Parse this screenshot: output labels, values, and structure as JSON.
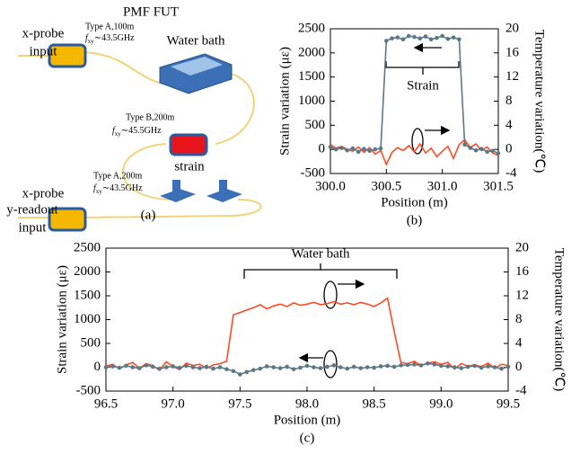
{
  "diagram": {
    "title": "PMF FUT",
    "probe_top": [
      "x-probe",
      "input"
    ],
    "coil_1": {
      "type": "Type A,100m",
      "freq": [
        "f",
        "xy",
        "∼43.5GHz"
      ]
    },
    "water_bath": "Water bath",
    "coil_2": {
      "type": "Type B,200m",
      "freq": [
        "f",
        "xy",
        "∼45.5GHz"
      ]
    },
    "strain": "strain",
    "coil_3": {
      "type": "Type A,200m",
      "freq": [
        "f",
        "xy",
        "∼43.5GHz"
      ]
    },
    "probe_bottom": [
      "x-probe",
      "y-readout",
      "input"
    ],
    "caption": "(a)"
  },
  "chart_data": [
    {
      "type": "line",
      "caption": "(b)",
      "xlabel": "Position (m)",
      "ylabel": "Strain variation (με)",
      "y2label": "Temperature variation(℃)",
      "annotation": "Strain",
      "x": [
        300.0,
        300.05,
        300.1,
        300.15,
        300.2,
        300.25,
        300.3,
        300.35,
        300.4,
        300.45,
        300.5,
        300.55,
        300.6,
        300.65,
        300.7,
        300.75,
        300.8,
        300.85,
        300.9,
        300.95,
        301.0,
        301.05,
        301.1,
        301.15,
        301.2,
        301.25,
        301.3,
        301.35,
        301.4,
        301.45,
        301.5
      ],
      "series": [
        {
          "color": "#5b7886",
          "markers": true,
          "values": [
            50,
            0,
            30,
            -20,
            20,
            -50,
            10,
            -30,
            0,
            20,
            2250,
            2300,
            2320,
            2280,
            2350,
            2330,
            2300,
            2340,
            2280,
            2310,
            2350,
            2290,
            2320,
            2280,
            100,
            30,
            -20,
            10,
            -50,
            -30,
            -80
          ]
        },
        {
          "color": "#ff4a26",
          "axis": "y2",
          "values": [
            0.8,
            0.2,
            0.5,
            0.0,
            -0.3,
            0.4,
            -0.5,
            0.3,
            -0.8,
            -0.2,
            -2.5,
            -0.5,
            0.3,
            -0.2,
            0.6,
            -0.4,
            0.9,
            -0.6,
            0.2,
            -1.2,
            -0.3,
            0.5,
            -1.5,
            0.8,
            1.6,
            0.3,
            0.9,
            -0.2,
            0.4,
            -0.6,
            -1.0
          ]
        }
      ],
      "xlim": [
        300.0,
        301.5
      ],
      "xticks": [
        {
          "value": 300.0,
          "label": "300.0"
        },
        300.5,
        {
          "value": 301.0,
          "label": "301.0"
        },
        301.5
      ],
      "ylim": [
        -500,
        2500
      ],
      "yticks": [
        2500,
        2000,
        1500,
        1000,
        500,
        0,
        -500
      ],
      "y2lim": [
        -4,
        20
      ],
      "y2ticks": [
        20,
        16,
        12,
        8,
        4,
        0,
        -4
      ]
    },
    {
      "type": "line",
      "caption": "(c)",
      "xlabel": "Position (m)",
      "ylabel": "Strain variation (με)",
      "y2label": "Temperature variation(℃)",
      "annotation": "Water bath",
      "x": [
        96.5,
        96.55,
        96.6,
        96.65,
        96.7,
        96.75,
        96.8,
        96.85,
        96.9,
        96.95,
        97.0,
        97.05,
        97.1,
        97.15,
        97.2,
        97.25,
        97.3,
        97.35,
        97.4,
        97.45,
        97.5,
        97.55,
        97.6,
        97.65,
        97.7,
        97.75,
        97.8,
        97.85,
        97.9,
        97.95,
        98.0,
        98.05,
        98.1,
        98.15,
        98.2,
        98.25,
        98.3,
        98.35,
        98.4,
        98.45,
        98.5,
        98.55,
        98.6,
        98.65,
        98.7,
        98.75,
        98.8,
        98.85,
        98.9,
        98.95,
        99.0,
        99.05,
        99.1,
        99.15,
        99.2,
        99.25,
        99.3,
        99.35,
        99.4,
        99.45,
        99.5
      ],
      "series": [
        {
          "color": "#5b7886",
          "markers": true,
          "values": [
            0,
            20,
            -10,
            30,
            0,
            -20,
            40,
            10,
            -30,
            0,
            20,
            -10,
            30,
            0,
            -20,
            10,
            -30,
            0,
            -40,
            -80,
            -150,
            -100,
            -60,
            -30,
            20,
            0,
            -20,
            10,
            -40,
            -10,
            30,
            0,
            -20,
            10,
            40,
            0,
            -30,
            10,
            -20,
            0,
            -10,
            20,
            30,
            10,
            40,
            50,
            60,
            40,
            80,
            60,
            30,
            20,
            0,
            -20,
            10,
            30,
            -10,
            20,
            0,
            -30,
            10
          ]
        },
        {
          "color": "#ff4a26",
          "axis": "y2",
          "values": [
            0.2,
            0.5,
            -0.3,
            0.4,
            0.8,
            -0.2,
            0.6,
            0.3,
            -0.5,
            0.9,
            0.1,
            -0.4,
            0.7,
            0.3,
            0.5,
            -0.2,
            0.4,
            0.6,
            1.0,
            8.8,
            9.2,
            9.6,
            10.0,
            10.5,
            9.8,
            10.3,
            10.6,
            10.2,
            10.8,
            10.4,
            10.6,
            10.9,
            10.5,
            10.7,
            11.0,
            10.6,
            10.8,
            10.5,
            10.9,
            10.6,
            10.2,
            10.8,
            11.6,
            6.0,
            0.8,
            0.6,
            1.0,
            0.3,
            0.7,
            0.9,
            0.5,
            0.8,
            -0.3,
            0.6,
            0.2,
            0.4,
            0.1,
            0.7,
            -0.2,
            0.5,
            0.3
          ]
        }
      ],
      "xlim": [
        96.5,
        99.5
      ],
      "xticks": [
        96.5,
        {
          "value": 97.0,
          "label": "97.0"
        },
        97.5,
        {
          "value": 98.0,
          "label": "98.0"
        },
        98.5,
        {
          "value": 99.0,
          "label": "99.0"
        },
        99.5
      ],
      "ylim": [
        -500,
        2500
      ],
      "yticks": [
        2500,
        2000,
        1500,
        1000,
        500,
        0,
        -500
      ],
      "y2lim": [
        -4,
        20
      ],
      "y2ticks": [
        20,
        16,
        12,
        8,
        4,
        0,
        -4
      ]
    }
  ]
}
